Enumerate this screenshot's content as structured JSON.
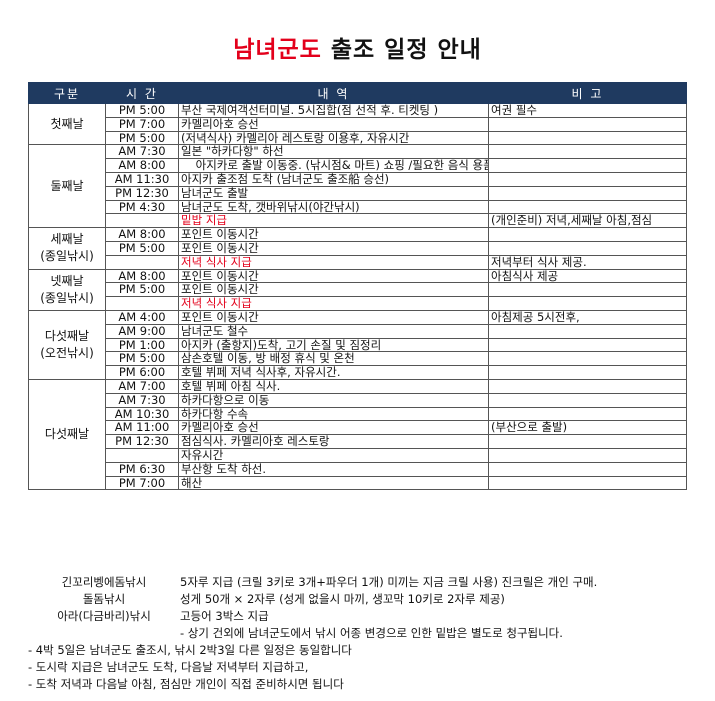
{
  "title": {
    "highlight": "남녀군도",
    "rest": " 출조 일정 안내"
  },
  "table": {
    "headers": [
      "구분",
      "시 간",
      "내 역",
      "비 고"
    ],
    "groups": [
      {
        "label": "첫째날",
        "rows": [
          {
            "time": "PM 5:00",
            "content": "부산 국제여객선터미널. 5시집합(점 선적 후. 티켓팅 )",
            "note": "여권 필수"
          },
          {
            "time": "PM 7:00",
            "content": "카멜리아호 승선"
          },
          {
            "time": "PM 5:00",
            "content": "(저녁식사) 카멜리아 레스토랑 이용후, 자유시간"
          }
        ]
      },
      {
        "label": "둘째날",
        "rows": [
          {
            "time": "AM 7:30",
            "content": "일본 \"하카다항\" 하선"
          },
          {
            "time": "AM 8:00",
            "content": "    아지카로 출발 이동중. (낚시점& 마트) 쇼핑 /필요한 음식 용품 구입(빵,과일,음료 外)"
          },
          {
            "time": "AM 11:30",
            "content": "아지카 출조점 도착 (남녀군도 출조船 승선)"
          },
          {
            "time": "PM 12:30",
            "content": "남녀군도 출발"
          },
          {
            "time": "PM 4:30",
            "content": "남녀군도 도착, 갯바위낚시(야간낚시)"
          },
          {
            "content": "밑밥 지급",
            "highlight": true,
            "note": "(개인준비) 저녁,세째날 아침,점심"
          }
        ]
      },
      {
        "label": "세째날",
        "sub": "(종일낚시)",
        "rows": [
          {
            "time": "AM 8:00",
            "content": "포인트 이동시간"
          },
          {
            "time": "PM 5:00",
            "content": "포인트 이동시간"
          },
          {
            "content": "저녁 식사 지급",
            "highlight": true,
            "note": "저녁부터 식사 제공."
          }
        ]
      },
      {
        "label": "넷째날",
        "sub": "(종일낚시)",
        "rows": [
          {
            "time": "AM 8:00",
            "content": "포인트 이동시간",
            "note": "아침식사 제공"
          },
          {
            "time": "PM 5:00",
            "content": "포인트 이동시간"
          },
          {
            "content": "저녁 식사 지급",
            "highlight": true
          }
        ]
      },
      {
        "label": "다섯째날",
        "sub": "(오전낚시)",
        "rows": [
          {
            "time": "AM 4:00",
            "content": "포인트 이동시간",
            "note": "아침제공 5시전후,"
          },
          {
            "time": "AM 9:00",
            "content": "남녀군도 철수"
          },
          {
            "time": "PM 1:00",
            "content": "아지카 (출항지)도착, 고기 손질 및 짐정리"
          },
          {
            "time": "PM 5:00",
            "content": "삼손호텔 이동, 방 배정 휴식 및 온천"
          },
          {
            "time": "PM 6:00",
            "content": "호텔 뷔페 저녁 식사후, 자유시간."
          }
        ]
      },
      {
        "label": "다섯째날",
        "rows": [
          {
            "time": "AM 7:00",
            "content": "호텔 뷔페 아침 식사."
          },
          {
            "time": "AM 7:30",
            "content": "하카다항으로 이동"
          },
          {
            "time": "AM 10:30",
            "content": "하카다항 수속"
          },
          {
            "time": "AM 11:00",
            "content": "카멜리아호 승선",
            "note": "(부산으로 출발)"
          },
          {
            "time": "PM 12:30",
            "content": "점심식사. 카멜리아호 레스토랑"
          },
          {
            "content": "자유시간"
          },
          {
            "time": "PM 6:30",
            "content": "부산항 도착 하선."
          },
          {
            "time": "PM 7:00",
            "content": "해산"
          }
        ]
      }
    ]
  },
  "notes": [
    {
      "label": "긴꼬리벵에돔낚시",
      "text": "5자루 지급 (크릴 3키로 3개+파우더 1개) 미끼는 지금 크릴 사용) 진크릴은 개인 구매."
    },
    {
      "label": "돌돔낚시",
      "text": "성게 50개 × 2자루 (성게 없을시 마끼, 생꼬막 10키로 2자루 제공)"
    },
    {
      "label": "아라(다금바리)낚시",
      "text": "고등어 3박스 지급"
    },
    {
      "text": "- 상기 건외에 남녀군도에서 낚시 어종 변경으로 인한 밑밥은 별도로 청구됩니다."
    }
  ],
  "footer": [
    "- 4박 5일은 남녀군도 출조시, 낚시 2박3일 다른 일정은 동일합니다",
    "- 도시락 지급은 남녀군도 도착, 다음날 저녁부터 지급하고,",
    "- 도착 저녁과 다음날 아침, 점심만 개인이 직접 준비하시면 됩니다"
  ]
}
